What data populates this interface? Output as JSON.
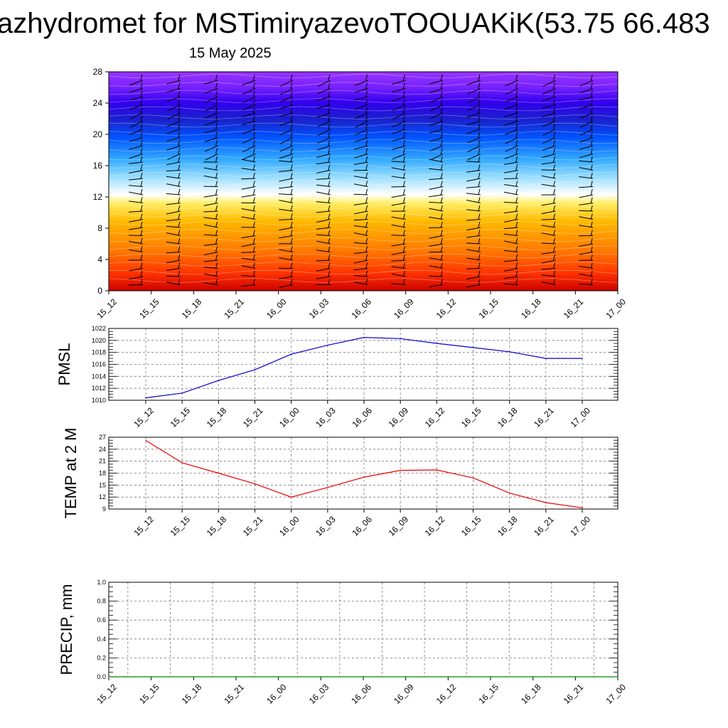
{
  "title": "azhydromet for MSTimiryazevoTOOUAKiK(53.75 66.483",
  "date": "15 May 2025",
  "chart_data": [
    {
      "type": "heatmap",
      "name": "upper-panel",
      "x": [
        "15_12",
        "15_15",
        "15_18",
        "15_21",
        "16_00",
        "16_03",
        "16_06",
        "16_09",
        "16_12",
        "16_15",
        "16_18",
        "16_21",
        "17_00"
      ],
      "yticks": [
        0,
        4,
        8,
        12,
        16,
        20,
        24,
        28
      ],
      "ylim": [
        0,
        28
      ],
      "colors": [
        "#cc0000",
        "#ff3300",
        "#ff7700",
        "#ffbb00",
        "#ffee66",
        "#ffffff",
        "#99ddff",
        "#33aaff",
        "#0055ff",
        "#1a22cc",
        "#3300ee",
        "#7722ff",
        "#9933ff"
      ],
      "wind_barbs": true
    },
    {
      "type": "line",
      "name": "pmsl",
      "ylabel": "PMSL",
      "x": [
        "15_12",
        "15_15",
        "15_18",
        "15_21",
        "16_00",
        "16_03",
        "16_06",
        "16_09",
        "16_12",
        "16_15",
        "16_18",
        "16_21",
        "17_00"
      ],
      "values": [
        1010.4,
        1011.2,
        1013.3,
        1015.1,
        1017.7,
        1019.2,
        1020.5,
        1020.3,
        1019.5,
        1018.8,
        1018.1,
        1017.0,
        1017.0
      ],
      "ylim": [
        1010,
        1022
      ],
      "yticks": [
        1010,
        1012,
        1014,
        1016,
        1018,
        1020,
        1022
      ],
      "color": "#0000cc"
    },
    {
      "type": "line",
      "name": "temp",
      "ylabel": "TEMP at 2 M",
      "x": [
        "15_12",
        "15_15",
        "15_18",
        "15_21",
        "16_00",
        "16_03",
        "16_06",
        "16_09",
        "16_12",
        "16_15",
        "16_18",
        "16_21",
        "17_00"
      ],
      "values": [
        26.2,
        20.6,
        18.0,
        15.3,
        12.0,
        14.4,
        17.0,
        18.7,
        18.8,
        16.8,
        13.0,
        10.6,
        9.3
      ],
      "ylim": [
        9,
        27
      ],
      "yticks": [
        9,
        12,
        15,
        18,
        21,
        24,
        27
      ],
      "color": "#ee0000"
    },
    {
      "type": "line",
      "name": "precip",
      "ylabel": "PRECIP, mm",
      "x": [
        "15_12",
        "15_15",
        "15_18",
        "15_21",
        "16_00",
        "16_03",
        "16_06",
        "16_09",
        "16_12",
        "16_15",
        "16_18",
        "16_21",
        "17_00"
      ],
      "values": [
        0,
        0,
        0,
        0,
        0,
        0,
        0,
        0,
        0,
        0,
        0,
        0,
        0
      ],
      "ylim": [
        0,
        1
      ],
      "yticks": [
        "0.0",
        "0.2",
        "0.4",
        "0.6",
        "0.8",
        "1.0"
      ],
      "color": "#008800"
    }
  ]
}
